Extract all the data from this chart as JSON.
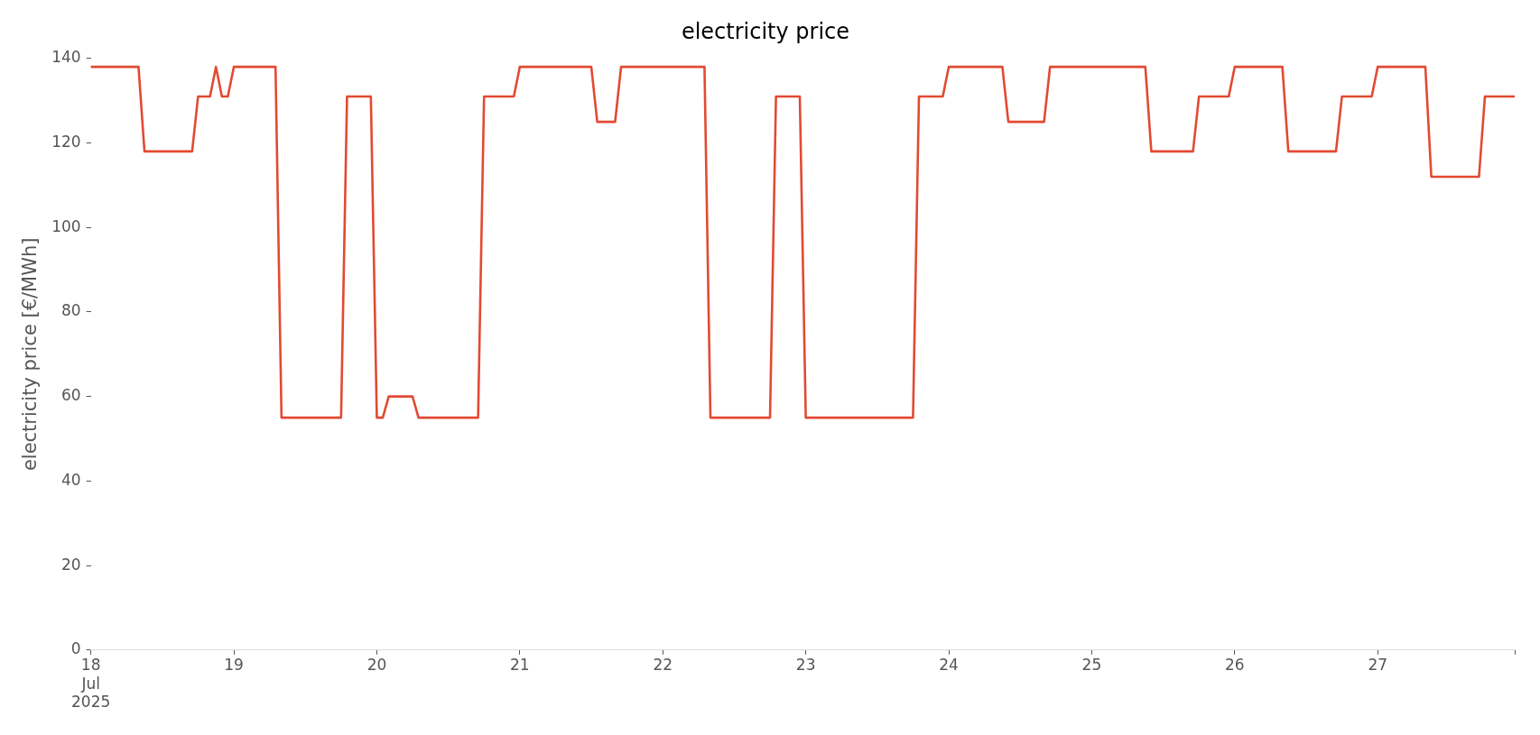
{
  "chart_data": {
    "type": "line",
    "title": "electricity price",
    "ylabel": "electricity price [€/MWh]",
    "series": [
      {
        "color": "#e24a33",
        "x": [
          "2025-07-18T00:00",
          "2025-07-18T08:00",
          "2025-07-18T09:00",
          "2025-07-18T17:00",
          "2025-07-18T18:00",
          "2025-07-18T20:00",
          "2025-07-18T21:00",
          "2025-07-18T22:00",
          "2025-07-18T23:00",
          "2025-07-19T00:00",
          "2025-07-19T07:00",
          "2025-07-19T08:00",
          "2025-07-19T18:00",
          "2025-07-19T19:00",
          "2025-07-19T23:00",
          "2025-07-20T00:00",
          "2025-07-20T01:00",
          "2025-07-20T02:00",
          "2025-07-20T06:00",
          "2025-07-20T07:00",
          "2025-07-20T17:00",
          "2025-07-20T18:00",
          "2025-07-20T23:00",
          "2025-07-21T00:00",
          "2025-07-21T12:00",
          "2025-07-21T13:00",
          "2025-07-21T16:00",
          "2025-07-21T17:00",
          "2025-07-22T07:00",
          "2025-07-22T08:00",
          "2025-07-22T18:00",
          "2025-07-22T19:00",
          "2025-07-22T23:00",
          "2025-07-23T00:00",
          "2025-07-23T18:00",
          "2025-07-23T19:00",
          "2025-07-23T23:00",
          "2025-07-24T00:00",
          "2025-07-24T09:00",
          "2025-07-24T10:00",
          "2025-07-24T16:00",
          "2025-07-24T17:00",
          "2025-07-25T09:00",
          "2025-07-25T10:00",
          "2025-07-25T17:00",
          "2025-07-25T18:00",
          "2025-07-25T23:00",
          "2025-07-26T00:00",
          "2025-07-26T08:00",
          "2025-07-26T09:00",
          "2025-07-26T17:00",
          "2025-07-26T18:00",
          "2025-07-26T23:00",
          "2025-07-27T00:00",
          "2025-07-27T08:00",
          "2025-07-27T09:00",
          "2025-07-27T17:00",
          "2025-07-27T18:00",
          "2025-07-27T23:00"
        ],
        "values": [
          138,
          138,
          118,
          118,
          131,
          131,
          138,
          131,
          131,
          138,
          138,
          55,
          55,
          131,
          131,
          55,
          55,
          60,
          60,
          55,
          55,
          131,
          131,
          138,
          138,
          125,
          125,
          138,
          138,
          55,
          55,
          131,
          131,
          55,
          55,
          131,
          131,
          138,
          138,
          125,
          125,
          138,
          138,
          118,
          118,
          131,
          131,
          138,
          138,
          118,
          118,
          131,
          131,
          138,
          138,
          112,
          112,
          131,
          131
        ]
      }
    ],
    "xticks": [
      {
        "value": "2025-07-18T00:00",
        "label": "18\nJul\n2025"
      },
      {
        "value": "2025-07-19T00:00",
        "label": "19"
      },
      {
        "value": "2025-07-20T00:00",
        "label": "20"
      },
      {
        "value": "2025-07-21T00:00",
        "label": "21"
      },
      {
        "value": "2025-07-22T00:00",
        "label": "22"
      },
      {
        "value": "2025-07-23T00:00",
        "label": "23"
      },
      {
        "value": "2025-07-24T00:00",
        "label": "24"
      },
      {
        "value": "2025-07-25T00:00",
        "label": "25"
      },
      {
        "value": "2025-07-26T00:00",
        "label": "26"
      },
      {
        "value": "2025-07-27T00:00",
        "label": "27"
      },
      {
        "value": "2025-07-27T23:00",
        "label": null
      }
    ],
    "xlim": [
      "2025-07-18T00:00",
      "2025-07-27T23:00"
    ],
    "ylim": [
      0,
      140
    ],
    "yticks": [
      0,
      20,
      40,
      60,
      80,
      100,
      120,
      140
    ],
    "grid": false,
    "legend": false,
    "marker": "none",
    "line_style": "solid"
  }
}
